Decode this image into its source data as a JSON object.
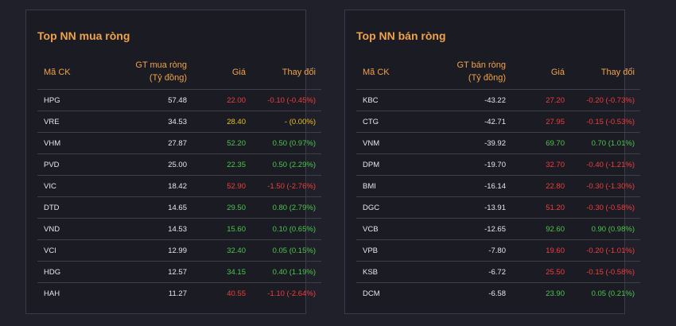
{
  "colors": {
    "up": "#4cc64c",
    "down": "#f03e3e",
    "reference": "#e8c21c",
    "header": "#f0a24a",
    "text": "#e6e6ea"
  },
  "left": {
    "title": "Top NN mua ròng",
    "headers": {
      "symbol": "Mã CK",
      "net_line1": "GT mua ròng",
      "net_line2": "(Tỷ đồng)",
      "price": "Giá",
      "change": "Thay đổi"
    },
    "rows": [
      {
        "symbol": "HPG",
        "net": "57.48",
        "price": "22.00",
        "change": "-0.10 (-0.45%)",
        "trend": "down"
      },
      {
        "symbol": "VRE",
        "net": "34.53",
        "price": "28.40",
        "change": "- (0.00%)",
        "trend": "ref"
      },
      {
        "symbol": "VHM",
        "net": "27.87",
        "price": "52.20",
        "change": "0.50 (0.97%)",
        "trend": "up"
      },
      {
        "symbol": "PVD",
        "net": "25.00",
        "price": "22.35",
        "change": "0.50 (2.29%)",
        "trend": "up"
      },
      {
        "symbol": "VIC",
        "net": "18.42",
        "price": "52.90",
        "change": "-1.50 (-2.76%)",
        "trend": "down"
      },
      {
        "symbol": "DTD",
        "net": "14.65",
        "price": "29.50",
        "change": "0.80 (2.79%)",
        "trend": "up"
      },
      {
        "symbol": "VND",
        "net": "14.53",
        "price": "15.60",
        "change": "0.10 (0.65%)",
        "trend": "up"
      },
      {
        "symbol": "VCI",
        "net": "12.99",
        "price": "32.40",
        "change": "0.05 (0.15%)",
        "trend": "up"
      },
      {
        "symbol": "HDG",
        "net": "12.57",
        "price": "34.15",
        "change": "0.40 (1.19%)",
        "trend": "up"
      },
      {
        "symbol": "HAH",
        "net": "11.27",
        "price": "40.55",
        "change": "-1.10 (-2.64%)",
        "trend": "down"
      }
    ]
  },
  "right": {
    "title": "Top NN bán ròng",
    "headers": {
      "symbol": "Mã CK",
      "net_line1": "GT bán ròng",
      "net_line2": "(Tỷ đồng)",
      "price": "Giá",
      "change": "Thay đổi"
    },
    "rows": [
      {
        "symbol": "KBC",
        "net": "-43.22",
        "price": "27.20",
        "change": "-0.20 (-0.73%)",
        "trend": "down"
      },
      {
        "symbol": "CTG",
        "net": "-42.71",
        "price": "27.95",
        "change": "-0.15 (-0.53%)",
        "trend": "down"
      },
      {
        "symbol": "VNM",
        "net": "-39.92",
        "price": "69.70",
        "change": "0.70 (1.01%)",
        "trend": "up"
      },
      {
        "symbol": "DPM",
        "net": "-19.70",
        "price": "32.70",
        "change": "-0.40 (-1.21%)",
        "trend": "down"
      },
      {
        "symbol": "BMI",
        "net": "-16.14",
        "price": "22.80",
        "change": "-0.30 (-1.30%)",
        "trend": "down"
      },
      {
        "symbol": "DGC",
        "net": "-13.91",
        "price": "51.20",
        "change": "-0.30 (-0.58%)",
        "trend": "down"
      },
      {
        "symbol": "VCB",
        "net": "-12.65",
        "price": "92.60",
        "change": "0.90 (0.98%)",
        "trend": "up"
      },
      {
        "symbol": "VPB",
        "net": "-7.80",
        "price": "19.60",
        "change": "-0.20 (-1.01%)",
        "trend": "down"
      },
      {
        "symbol": "KSB",
        "net": "-6.72",
        "price": "25.50",
        "change": "-0.15 (-0.58%)",
        "trend": "down"
      },
      {
        "symbol": "DCM",
        "net": "-6.58",
        "price": "23.90",
        "change": "0.05 (0.21%)",
        "trend": "up"
      }
    ]
  }
}
